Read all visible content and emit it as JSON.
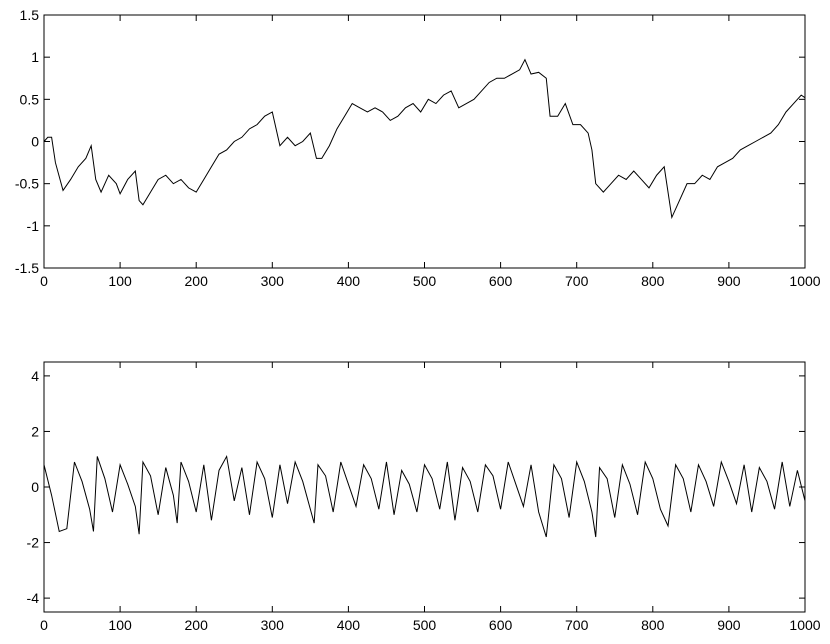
{
  "chart_data": [
    {
      "type": "line",
      "x": [
        0,
        5,
        10,
        15,
        25,
        35,
        45,
        55,
        62,
        68,
        75,
        85,
        95,
        100,
        110,
        120,
        125,
        130,
        140,
        150,
        160,
        170,
        180,
        190,
        200,
        210,
        220,
        230,
        240,
        250,
        260,
        270,
        280,
        290,
        300,
        305,
        310,
        320,
        330,
        340,
        350,
        358,
        365,
        375,
        385,
        395,
        405,
        415,
        425,
        435,
        445,
        455,
        465,
        475,
        485,
        495,
        505,
        515,
        525,
        535,
        545,
        555,
        565,
        575,
        585,
        595,
        605,
        615,
        625,
        632,
        640,
        650,
        660,
        665,
        675,
        685,
        695,
        705,
        715,
        720,
        725,
        735,
        745,
        755,
        765,
        775,
        785,
        795,
        805,
        815,
        825,
        835,
        845,
        855,
        865,
        875,
        885,
        895,
        905,
        915,
        925,
        935,
        945,
        955,
        965,
        975,
        985,
        995,
        1000
      ],
      "series": [
        {
          "color": "#000000",
          "values": [
            0,
            0.05,
            0.05,
            -0.25,
            -0.58,
            -0.45,
            -0.3,
            -0.2,
            -0.05,
            -0.45,
            -0.6,
            -0.4,
            -0.5,
            -0.62,
            -0.45,
            -0.35,
            -0.7,
            -0.75,
            -0.6,
            -0.45,
            -0.4,
            -0.5,
            -0.45,
            -0.55,
            -0.6,
            -0.45,
            -0.3,
            -0.15,
            -0.1,
            0.0,
            0.05,
            0.15,
            0.2,
            0.3,
            0.35,
            0.15,
            -0.05,
            0.05,
            -0.05,
            0.0,
            0.1,
            -0.2,
            -0.2,
            -0.05,
            0.15,
            0.3,
            0.45,
            0.4,
            0.35,
            0.4,
            0.35,
            0.25,
            0.3,
            0.4,
            0.45,
            0.35,
            0.5,
            0.45,
            0.55,
            0.6,
            0.4,
            0.45,
            0.5,
            0.6,
            0.7,
            0.75,
            0.75,
            0.8,
            0.85,
            0.97,
            0.8,
            0.82,
            0.75,
            0.3,
            0.3,
            0.45,
            0.2,
            0.2,
            0.1,
            -0.1,
            -0.5,
            -0.6,
            -0.5,
            -0.4,
            -0.45,
            -0.35,
            -0.45,
            -0.55,
            -0.4,
            -0.3,
            -0.9,
            -0.7,
            -0.5,
            -0.5,
            -0.4,
            -0.45,
            -0.3,
            -0.25,
            -0.2,
            -0.1,
            -0.05,
            0.0,
            0.05,
            0.1,
            0.2,
            0.35,
            0.45,
            0.55,
            0.52
          ]
        }
      ],
      "xlim": [
        0,
        1000
      ],
      "xticks": [
        0,
        100,
        200,
        300,
        400,
        500,
        600,
        700,
        800,
        900,
        1000
      ],
      "ylim": [
        -1.5,
        1.5
      ],
      "yticks": [
        -1.5,
        -1,
        -0.5,
        0,
        0.5,
        1,
        1.5
      ]
    },
    {
      "type": "line",
      "x": [
        0,
        10,
        20,
        30,
        40,
        50,
        60,
        65,
        70,
        80,
        90,
        100,
        110,
        120,
        125,
        130,
        140,
        150,
        160,
        170,
        175,
        180,
        190,
        200,
        210,
        220,
        230,
        240,
        250,
        260,
        270,
        280,
        290,
        300,
        310,
        320,
        330,
        340,
        350,
        355,
        360,
        370,
        380,
        390,
        400,
        410,
        420,
        430,
        440,
        450,
        460,
        470,
        480,
        490,
        500,
        510,
        520,
        530,
        540,
        550,
        560,
        570,
        580,
        590,
        600,
        610,
        620,
        630,
        640,
        650,
        660,
        670,
        680,
        690,
        700,
        710,
        720,
        725,
        730,
        740,
        750,
        760,
        770,
        780,
        790,
        800,
        810,
        820,
        830,
        840,
        850,
        860,
        870,
        880,
        890,
        900,
        910,
        920,
        930,
        940,
        950,
        960,
        970,
        980,
        990,
        1000
      ],
      "series": [
        {
          "color": "#000000",
          "values": [
            0.8,
            -0.3,
            -1.6,
            -1.5,
            0.9,
            0.2,
            -0.8,
            -1.6,
            1.1,
            0.3,
            -0.9,
            0.8,
            0.1,
            -0.7,
            -1.7,
            0.9,
            0.4,
            -1.0,
            0.7,
            -0.3,
            -1.3,
            0.9,
            0.2,
            -0.9,
            0.8,
            -1.2,
            0.6,
            1.1,
            -0.5,
            0.7,
            -1.0,
            0.9,
            0.3,
            -1.1,
            0.8,
            -0.6,
            0.9,
            0.2,
            -0.8,
            -1.3,
            0.8,
            0.4,
            -0.9,
            0.9,
            0.1,
            -0.7,
            0.8,
            0.3,
            -0.8,
            0.9,
            -1.0,
            0.6,
            0.1,
            -0.9,
            0.8,
            0.3,
            -0.8,
            0.9,
            -1.2,
            0.7,
            0.2,
            -0.9,
            0.8,
            0.4,
            -0.8,
            0.9,
            0.1,
            -0.7,
            0.8,
            -0.9,
            -1.8,
            0.8,
            0.3,
            -1.1,
            0.9,
            0.2,
            -0.9,
            -1.8,
            0.7,
            0.3,
            -1.1,
            0.8,
            0.1,
            -1.0,
            0.9,
            0.3,
            -0.8,
            -1.4,
            0.8,
            0.3,
            -0.9,
            0.8,
            0.2,
            -0.7,
            0.9,
            0.2,
            -0.6,
            0.8,
            -0.9,
            0.7,
            0.2,
            -0.8,
            0.9,
            -0.7,
            0.6,
            -0.5
          ]
        }
      ],
      "xlim": [
        0,
        1000
      ],
      "xticks": [
        0,
        100,
        200,
        300,
        400,
        500,
        600,
        700,
        800,
        900,
        1000
      ],
      "ylim": [
        -4.5,
        4.5
      ],
      "yticks": [
        -4,
        -2,
        0,
        2,
        4
      ]
    }
  ]
}
